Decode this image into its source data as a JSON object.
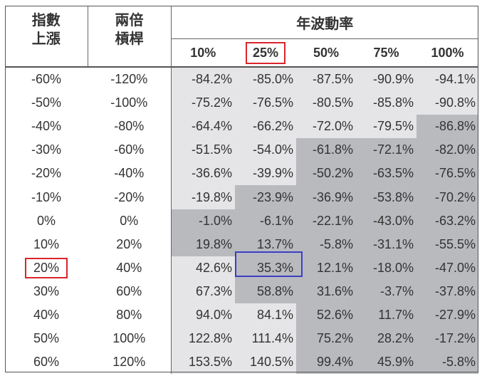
{
  "header": {
    "index_rise": [
      "指數",
      "上漲"
    ],
    "leverage": [
      "兩倍",
      "槓桿"
    ],
    "volatility": "年波動率",
    "vols": [
      "10%",
      "25%",
      "50%",
      "75%",
      "100%"
    ]
  },
  "highlight_colors": {
    "red": "#d9252b",
    "blue": "#3b3fc4",
    "light": "#e5e5e8",
    "dark": "#b9babe"
  },
  "rows": [
    {
      "idx": "-60%",
      "lev": "-120%",
      "vals": [
        "-84.2%",
        "-85.0%",
        "-87.5%",
        "-90.9%",
        "-94.1%"
      ],
      "shade": [
        "light",
        "light",
        "light",
        "light",
        "light"
      ]
    },
    {
      "idx": "-50%",
      "lev": "-100%",
      "vals": [
        "-75.2%",
        "-76.5%",
        "-80.5%",
        "-85.8%",
        "-90.8%"
      ],
      "shade": [
        "light",
        "light",
        "light",
        "light",
        "light"
      ]
    },
    {
      "idx": "-40%",
      "lev": "-80%",
      "vals": [
        "-64.4%",
        "-66.2%",
        "-72.0%",
        "-79.5%",
        "-86.8%"
      ],
      "shade": [
        "light",
        "light",
        "light",
        "light",
        "dark"
      ]
    },
    {
      "idx": "-30%",
      "lev": "-60%",
      "vals": [
        "-51.5%",
        "-54.0%",
        "-61.8%",
        "-72.1%",
        "-82.0%"
      ],
      "shade": [
        "light",
        "light",
        "dark",
        "dark",
        "dark"
      ]
    },
    {
      "idx": "-20%",
      "lev": "-40%",
      "vals": [
        "-36.6%",
        "-39.9%",
        "-50.2%",
        "-63.5%",
        "-76.5%"
      ],
      "shade": [
        "light",
        "light",
        "dark",
        "dark",
        "dark"
      ]
    },
    {
      "idx": "-10%",
      "lev": "-20%",
      "vals": [
        "-19.8%",
        "-23.9%",
        "-36.9%",
        "-53.8%",
        "-70.2%"
      ],
      "shade": [
        "light",
        "dark",
        "dark",
        "dark",
        "dark"
      ]
    },
    {
      "idx": "0%",
      "lev": "0%",
      "vals": [
        "-1.0%",
        "-6.1%",
        "-22.1%",
        "-43.0%",
        "-63.2%"
      ],
      "shade": [
        "dark",
        "dark",
        "dark",
        "dark",
        "dark"
      ]
    },
    {
      "idx": "10%",
      "lev": "20%",
      "vals": [
        "19.8%",
        "13.7%",
        "-5.8%",
        "-31.1%",
        "-55.5%"
      ],
      "shade": [
        "dark",
        "dark",
        "dark",
        "dark",
        "dark"
      ]
    },
    {
      "idx": "20%",
      "lev": "40%",
      "vals": [
        "42.6%",
        "35.3%",
        "12.1%",
        "-18.0%",
        "-47.0%"
      ],
      "shade": [
        "light",
        "dark",
        "dark",
        "dark",
        "dark"
      ]
    },
    {
      "idx": "30%",
      "lev": "60%",
      "vals": [
        "67.3%",
        "58.8%",
        "31.6%",
        "-3.7%",
        "-37.8%"
      ],
      "shade": [
        "light",
        "dark",
        "dark",
        "dark",
        "dark"
      ]
    },
    {
      "idx": "40%",
      "lev": "80%",
      "vals": [
        "94.0%",
        "84.1%",
        "52.6%",
        "11.7%",
        "-27.9%"
      ],
      "shade": [
        "light",
        "light",
        "dark",
        "dark",
        "dark"
      ]
    },
    {
      "idx": "50%",
      "lev": "100%",
      "vals": [
        "122.8%",
        "111.4%",
        "75.2%",
        "28.2%",
        "-17.2%"
      ],
      "shade": [
        "light",
        "light",
        "dark",
        "dark",
        "dark"
      ]
    },
    {
      "idx": "60%",
      "lev": "120%",
      "vals": [
        "153.5%",
        "140.5%",
        "99.4%",
        "45.9%",
        "-5.8%"
      ],
      "shade": [
        "light",
        "light",
        "dark",
        "dark",
        "dark"
      ]
    }
  ]
}
